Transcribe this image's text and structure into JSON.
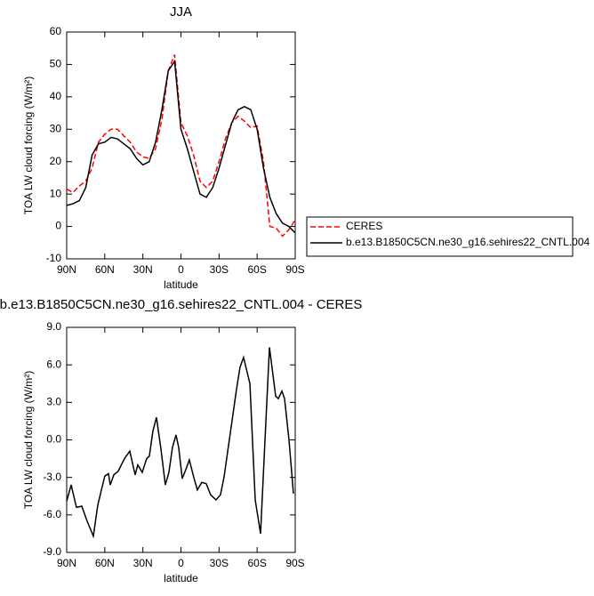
{
  "chart_data": [
    {
      "type": "line",
      "title": "JJA",
      "xlabel": "latitude",
      "ylabel": "TOA LW cloud forcing (W/m²)",
      "x": [
        90,
        85,
        80,
        75,
        70,
        65,
        60,
        55,
        50,
        45,
        40,
        35,
        30,
        25,
        20,
        15,
        10,
        5,
        0,
        -5,
        -10,
        -15,
        -20,
        -25,
        -30,
        -35,
        -40,
        -45,
        -50,
        -55,
        -60,
        -65,
        -70,
        -75,
        -80,
        -85,
        -90
      ],
      "series": [
        {
          "name": "CERES",
          "color": "#ff0000",
          "line_style": "dashed",
          "values": [
            11.5,
            10.5,
            12.5,
            14,
            18,
            26,
            28.5,
            30,
            30,
            28,
            26,
            23,
            21.5,
            21,
            24,
            33,
            48,
            53,
            32,
            28,
            22,
            14,
            12,
            14,
            20,
            27,
            32,
            34,
            32.5,
            30.5,
            31,
            20,
            0,
            -0.5,
            -3,
            -1,
            2
          ]
        },
        {
          "name": "b.e13.B1850C5CN.ne30_g16.sehires22_CNTL.004",
          "color": "#000000",
          "line_style": "solid",
          "values": [
            6.5,
            7,
            8,
            12,
            22,
            25.5,
            26,
            27.5,
            27,
            25.5,
            24,
            21,
            19,
            20,
            26,
            36,
            48,
            51,
            30,
            24,
            17,
            10,
            9,
            12,
            18,
            25,
            32,
            36,
            37,
            36,
            30,
            18,
            9,
            4,
            1,
            0,
            -2
          ]
        }
      ],
      "xlim": [
        90,
        -90
      ],
      "xticks": [
        {
          "value": 90,
          "label": "90N"
        },
        {
          "value": 60,
          "label": "60N"
        },
        {
          "value": 30,
          "label": "30N"
        },
        0,
        {
          "value": -30,
          "label": "30S"
        },
        {
          "value": -60,
          "label": "60S"
        },
        {
          "value": -90,
          "label": "90S"
        }
      ],
      "ylim": [
        -10,
        60
      ],
      "yticks": [
        -10,
        0,
        10,
        20,
        30,
        40,
        50,
        60
      ],
      "legend": "right",
      "grid": false
    },
    {
      "type": "line",
      "title": "b.e13.B1850C5CN.ne30_g16.sehires22_CNTL.004 - CERES",
      "xlabel": "latitude",
      "ylabel": "TOA LW cloud forcing (W/m²)",
      "x": [
        90,
        86.5,
        82.3,
        78.1,
        73.9,
        69,
        65.5,
        60,
        57.1,
        55.7,
        52.9,
        49.4,
        44.5,
        40.3,
        36.1,
        34,
        30.5,
        27,
        24.9,
        22.1,
        19.3,
        15.8,
        12.3,
        9.5,
        6.7,
        3.9,
        1.8,
        -1,
        -4.5,
        -6.6,
        -10.1,
        -12.9,
        -16.4,
        -19.9,
        -23.4,
        -27.6,
        -31.1,
        -33.9,
        -37.4,
        -40.9,
        -43.7,
        -46.5,
        -49.3,
        -54.3,
        -58.5,
        -62.7,
        -66.2,
        -69.7,
        -74.6,
        -76.7,
        -79.5,
        -81.6,
        -85.1,
        -88.6
      ],
      "values": [
        -4.9,
        -3.6,
        -5.4,
        -5.3,
        -6.5,
        -7.7,
        -5.2,
        -2.9,
        -2.7,
        -3.6,
        -2.8,
        -2.5,
        -1.5,
        -0.9,
        -2.8,
        -2.0,
        -2.6,
        -1.5,
        -1.3,
        0.7,
        1.8,
        -0.7,
        -3.6,
        -2.6,
        -0.6,
        0.4,
        -0.6,
        -3.1,
        -2.2,
        -1.6,
        -3.0,
        -4.0,
        -3.4,
        -3.5,
        -4.4,
        -4.8,
        -4.4,
        -3.0,
        -0.5,
        2.0,
        4.0,
        5.8,
        6.6,
        4.5,
        -4.8,
        -7.5,
        0,
        7.4,
        3.5,
        3.3,
        3.9,
        3.3,
        0,
        -4.3
      ],
      "color": "#000000",
      "xlim": [
        90,
        -90
      ],
      "xticks": [
        {
          "value": 90,
          "label": "90N"
        },
        {
          "value": 60,
          "label": "60N"
        },
        {
          "value": 30,
          "label": "30N"
        },
        0,
        {
          "value": -30,
          "label": "30S"
        },
        {
          "value": -60,
          "label": "60S"
        },
        {
          "value": -90,
          "label": "90S"
        }
      ],
      "ylim": [
        -9,
        9
      ],
      "yticks": [
        {
          "value": -9,
          "label": "-9.0"
        },
        {
          "value": -6,
          "label": "-6.0"
        },
        {
          "value": -3,
          "label": "-3.0"
        },
        {
          "value": 0,
          "label": "0.0"
        },
        {
          "value": 3,
          "label": "3.0"
        },
        {
          "value": 6,
          "label": "6.0"
        },
        {
          "value": 9,
          "label": "9.0"
        }
      ],
      "grid": false
    }
  ]
}
